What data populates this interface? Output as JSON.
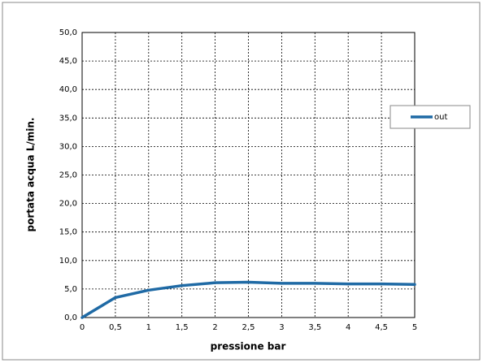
{
  "chart_data": {
    "type": "line",
    "x_label": "pressione bar",
    "y_label": "portata acqua  L/min.",
    "x": [
      0,
      0.5,
      1,
      1.5,
      2,
      2.5,
      3,
      3.5,
      4,
      4.5,
      5
    ],
    "series": [
      {
        "name": "out",
        "color": "#1f6aa5",
        "values": [
          0,
          3.5,
          4.8,
          5.6,
          6.1,
          6.2,
          6.0,
          6.0,
          5.9,
          5.9,
          5.8
        ]
      }
    ],
    "xlim": [
      0,
      5
    ],
    "xticks": [
      0,
      {
        "value": 0.5,
        "label": "0,5"
      },
      1,
      {
        "value": 1.5,
        "label": "1,5"
      },
      2,
      {
        "value": 2.5,
        "label": "2,5"
      },
      3,
      {
        "value": 3.5,
        "label": "3,5"
      },
      4,
      {
        "value": 4.5,
        "label": "4,5"
      },
      5
    ],
    "ylim": [
      0,
      50
    ],
    "yticks": [
      {
        "value": 0,
        "label": "0,0"
      },
      {
        "value": 5,
        "label": "5,0"
      },
      {
        "value": 10,
        "label": "10,0"
      },
      {
        "value": 15,
        "label": "15,0"
      },
      {
        "value": 20,
        "label": "20,0"
      },
      {
        "value": 25,
        "label": "25,0"
      },
      {
        "value": 30,
        "label": "30,0"
      },
      {
        "value": 35,
        "label": "35,0"
      },
      {
        "value": 40,
        "label": "40,0"
      },
      {
        "value": 45,
        "label": "45,0"
      },
      {
        "value": 50,
        "label": "50,0"
      }
    ],
    "grid": true,
    "legend": "right"
  }
}
